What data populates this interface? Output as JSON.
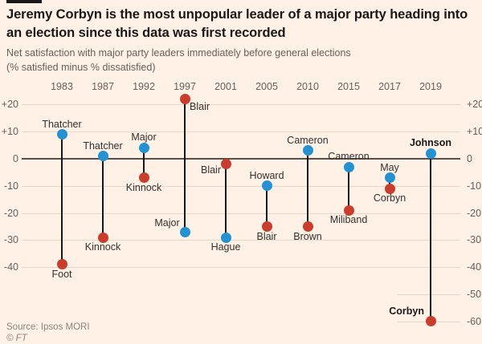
{
  "header": {
    "title_line1": "Jeremy Corbyn is the most unpopular leader of a major party heading into",
    "title_line2": "an election since this data was first recorded",
    "subtitle_line1": "Net satisfaction with major party leaders immediately before general elections",
    "subtitle_line2": "(% satisfied minus % dissatisfied)"
  },
  "footer": {
    "source": "Source: Ipsos MORI",
    "copyright": "© FT"
  },
  "colors": {
    "background": "#fff1e5",
    "blue": "#2292d3",
    "red": "#ca3c2b",
    "grid": "#e6d8c7",
    "zero_line": "#55504b",
    "stem": "#1a1817",
    "text_dark": "#1a1817",
    "text_gray": "#66605c"
  },
  "chart_data": {
    "type": "scatter",
    "subtype": "lollipop-dumbbell",
    "title": "Jeremy Corbyn is the most unpopular leader of a major party heading into an election since this data was first recorded",
    "subtitle": "Net satisfaction with major party leaders immediately before general elections (% satisfied minus % dissatisfied)",
    "source": "Ipsos MORI",
    "xlabel": "",
    "ylabel": "Net satisfaction (% satisfied minus % dissatisfied)",
    "ylim": [
      -65,
      25
    ],
    "grid": "horizontal",
    "legend": "none",
    "x_categories": [
      "1983",
      "1987",
      "1992",
      "1997",
      "2001",
      "2005",
      "2010",
      "2015",
      "2017",
      "2019"
    ],
    "y_ticks_left": [
      {
        "label": "+20",
        "value": 20
      },
      {
        "label": "+10",
        "value": 10
      },
      {
        "label": "0",
        "value": 0
      },
      {
        "label": "-10",
        "value": -10
      },
      {
        "label": "-20",
        "value": -20
      },
      {
        "label": "-30",
        "value": -30
      },
      {
        "label": "-40",
        "value": -40
      }
    ],
    "y_ticks_right_only": [
      {
        "label": "-50",
        "value": -50
      },
      {
        "label": "-60",
        "value": -60
      }
    ],
    "elections": [
      {
        "year": "1983",
        "points": [
          {
            "leader": "Thatcher",
            "value": 9,
            "color": "blue",
            "label_pos": "above",
            "bold": false
          },
          {
            "leader": "Foot",
            "value": -39,
            "color": "red",
            "label_pos": "below",
            "bold": false
          }
        ]
      },
      {
        "year": "1987",
        "points": [
          {
            "leader": "Thatcher",
            "value": 1,
            "color": "blue",
            "label_pos": "above",
            "bold": false
          },
          {
            "leader": "Kinnock",
            "value": -29,
            "color": "red",
            "label_pos": "below",
            "bold": false
          }
        ]
      },
      {
        "year": "1992",
        "points": [
          {
            "leader": "Major",
            "value": 4,
            "color": "blue",
            "label_pos": "above",
            "bold": false
          },
          {
            "leader": "Kinnock",
            "value": -7,
            "color": "red",
            "label_pos": "below",
            "bold": false
          }
        ]
      },
      {
        "year": "1997",
        "points": [
          {
            "leader": "Blair",
            "value": 22,
            "color": "red",
            "label_pos": "right-below",
            "bold": false
          },
          {
            "leader": "Major",
            "value": -27,
            "color": "blue",
            "label_pos": "above-left",
            "bold": false
          }
        ]
      },
      {
        "year": "2001",
        "points": [
          {
            "leader": "Blair",
            "value": -2,
            "color": "red",
            "label_pos": "left-below",
            "bold": false
          },
          {
            "leader": "Hague",
            "value": -29,
            "color": "blue",
            "label_pos": "below",
            "bold": false
          }
        ]
      },
      {
        "year": "2005",
        "points": [
          {
            "leader": "Howard",
            "value": -10,
            "color": "blue",
            "label_pos": "above",
            "bold": false
          },
          {
            "leader": "Blair",
            "value": -25,
            "color": "red",
            "label_pos": "below",
            "bold": false
          }
        ]
      },
      {
        "year": "2010",
        "points": [
          {
            "leader": "Cameron",
            "value": 3,
            "color": "blue",
            "label_pos": "above",
            "bold": false
          },
          {
            "leader": "Brown",
            "value": -25,
            "color": "red",
            "label_pos": "below",
            "bold": false
          }
        ]
      },
      {
        "year": "2015",
        "points": [
          {
            "leader": "Cameron",
            "value": -3,
            "color": "blue",
            "label_pos": "above",
            "bold": false
          },
          {
            "leader": "Miliband",
            "value": -19,
            "color": "red",
            "label_pos": "below",
            "bold": false
          }
        ]
      },
      {
        "year": "2017",
        "points": [
          {
            "leader": "May",
            "value": -7,
            "color": "blue",
            "label_pos": "above",
            "bold": false
          },
          {
            "leader": "Corbyn",
            "value": -11,
            "color": "red",
            "label_pos": "below",
            "bold": false
          }
        ]
      },
      {
        "year": "2019",
        "points": [
          {
            "leader": "Johnson",
            "value": 2,
            "color": "blue",
            "label_pos": "above",
            "bold": true
          },
          {
            "leader": "Corbyn",
            "value": -60,
            "color": "red",
            "label_pos": "left-above",
            "bold": true
          }
        ]
      }
    ]
  }
}
